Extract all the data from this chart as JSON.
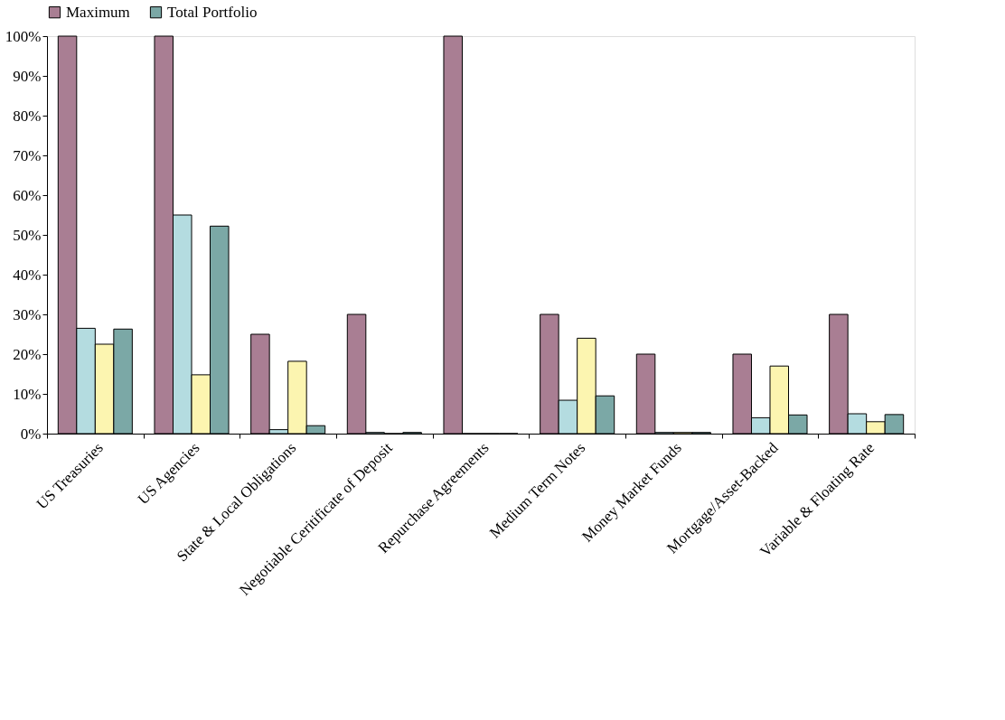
{
  "chart_data": {
    "type": "bar",
    "categories": [
      "US Treasuries",
      "US Agencies",
      "State & Local Obligations",
      "Negotiable Ceritificate of Deposit",
      "Repurchase Agreements",
      "Medium Term Notes",
      "Money Market Funds",
      "Mortgage/Asset-Backed",
      "Variable & Floating Rate"
    ],
    "series": [
      {
        "name": "Maximum",
        "color": "#a97e93",
        "values": [
          100,
          100,
          25,
          30,
          100,
          30,
          20,
          20,
          30
        ]
      },
      {
        "color": "#b4dce0",
        "values": [
          26.5,
          55,
          1,
          0.3,
          0,
          8.4,
          0.3,
          4,
          5
        ]
      },
      {
        "color": "#fcf5b0",
        "values": [
          22.5,
          14.8,
          18.2,
          0,
          0,
          24,
          0.3,
          17,
          3
        ]
      },
      {
        "name": "Total Portfolio",
        "color": "#7ba8a6",
        "values": [
          26.3,
          52.2,
          2,
          0.3,
          0,
          9.5,
          0.3,
          4.7,
          4.8
        ]
      }
    ],
    "ylim": [
      0,
      100
    ],
    "yticks": [
      {
        "value": 0,
        "label": "0%"
      },
      {
        "value": 10,
        "label": "10%"
      },
      {
        "value": 20,
        "label": "20%"
      },
      {
        "value": 30,
        "label": "30%"
      },
      {
        "value": 40,
        "label": "40%"
      },
      {
        "value": 50,
        "label": "50%"
      },
      {
        "value": 60,
        "label": "60%"
      },
      {
        "value": 70,
        "label": "70%"
      },
      {
        "value": 80,
        "label": "80%"
      },
      {
        "value": 90,
        "label": "90%"
      },
      {
        "value": 100,
        "label": "100%"
      }
    ],
    "grid": false,
    "legend": "top"
  }
}
